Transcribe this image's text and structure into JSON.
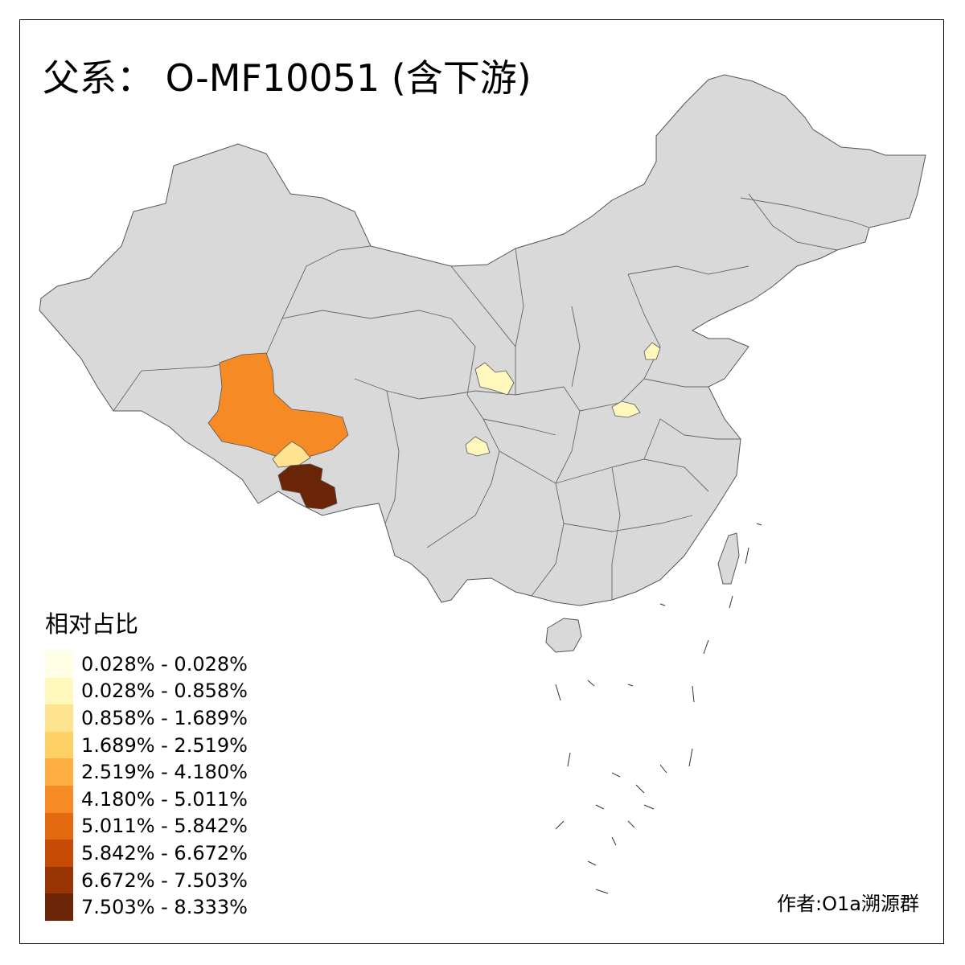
{
  "title": "父系： O-MF10051 (含下游)",
  "legend": {
    "title": "相对占比",
    "items": [
      {
        "label": "0.028% - 0.028%",
        "color": "#FFFFE5"
      },
      {
        "label": "0.028% - 0.858%",
        "color": "#FFF7BC"
      },
      {
        "label": "0.858% - 1.689%",
        "color": "#FEE391"
      },
      {
        "label": "1.689% - 2.519%",
        "color": "#FED166"
      },
      {
        "label": "2.519% - 4.180%",
        "color": "#FEAF43"
      },
      {
        "label": "4.180% - 5.011%",
        "color": "#F68A24"
      },
      {
        "label": "5.011% - 5.842%",
        "color": "#E46A12"
      },
      {
        "label": "5.842% - 6.672%",
        "color": "#C64C05"
      },
      {
        "label": "6.672% - 7.503%",
        "color": "#993404"
      },
      {
        "label": "7.503% - 8.333%",
        "color": "#6A2506"
      }
    ]
  },
  "author": "作者:O1a溯源群",
  "colors": {
    "base_fill": "#D9D9D9",
    "border": "#555555"
  }
}
